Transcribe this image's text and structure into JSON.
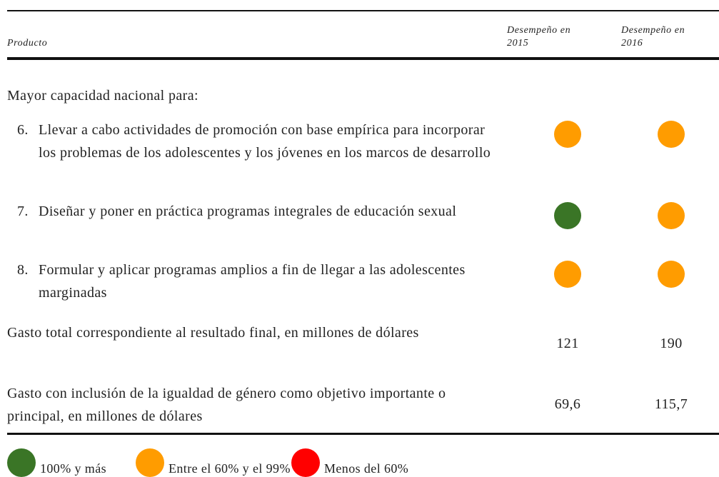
{
  "header": {
    "product": "Producto",
    "col2015": "Desempeño en 2015",
    "col2016": "Desempeño en 2016"
  },
  "section": "Mayor capacidad nacional para:",
  "items": [
    {
      "number": "6.",
      "text": "Llevar a cabo actividades de promoción con base empírica para incorporar los problemas de los adolescentes y los jóvenes en los marcos de desarrollo",
      "status": [
        1,
        1
      ]
    },
    {
      "number": "7.",
      "text": "Diseñar y poner en práctica programas integrales de educación sexual",
      "status": [
        0,
        1
      ]
    },
    {
      "number": "8.",
      "text": "Formular y aplicar programas amplios a fin de llegar a las adolescentes marginadas",
      "status": [
        1,
        1
      ]
    }
  ],
  "totals": [
    {
      "label": "Gasto total correspondiente al resultado final, en millones de dólares",
      "v2015": "121",
      "v2016": "190"
    },
    {
      "label": "Gasto con inclusión de la igualdad de género como objetivo importante o principal, en millones de dólares",
      "v2015": "69,6",
      "v2016": "115,7"
    }
  ],
  "legend": [
    {
      "label": "100% y más",
      "color": "#3a7526"
    },
    {
      "label": "Entre el 60% y el 99%",
      "color": "#ff9c00"
    },
    {
      "label": "Menos del 60%",
      "color": "#ff0000"
    }
  ]
}
